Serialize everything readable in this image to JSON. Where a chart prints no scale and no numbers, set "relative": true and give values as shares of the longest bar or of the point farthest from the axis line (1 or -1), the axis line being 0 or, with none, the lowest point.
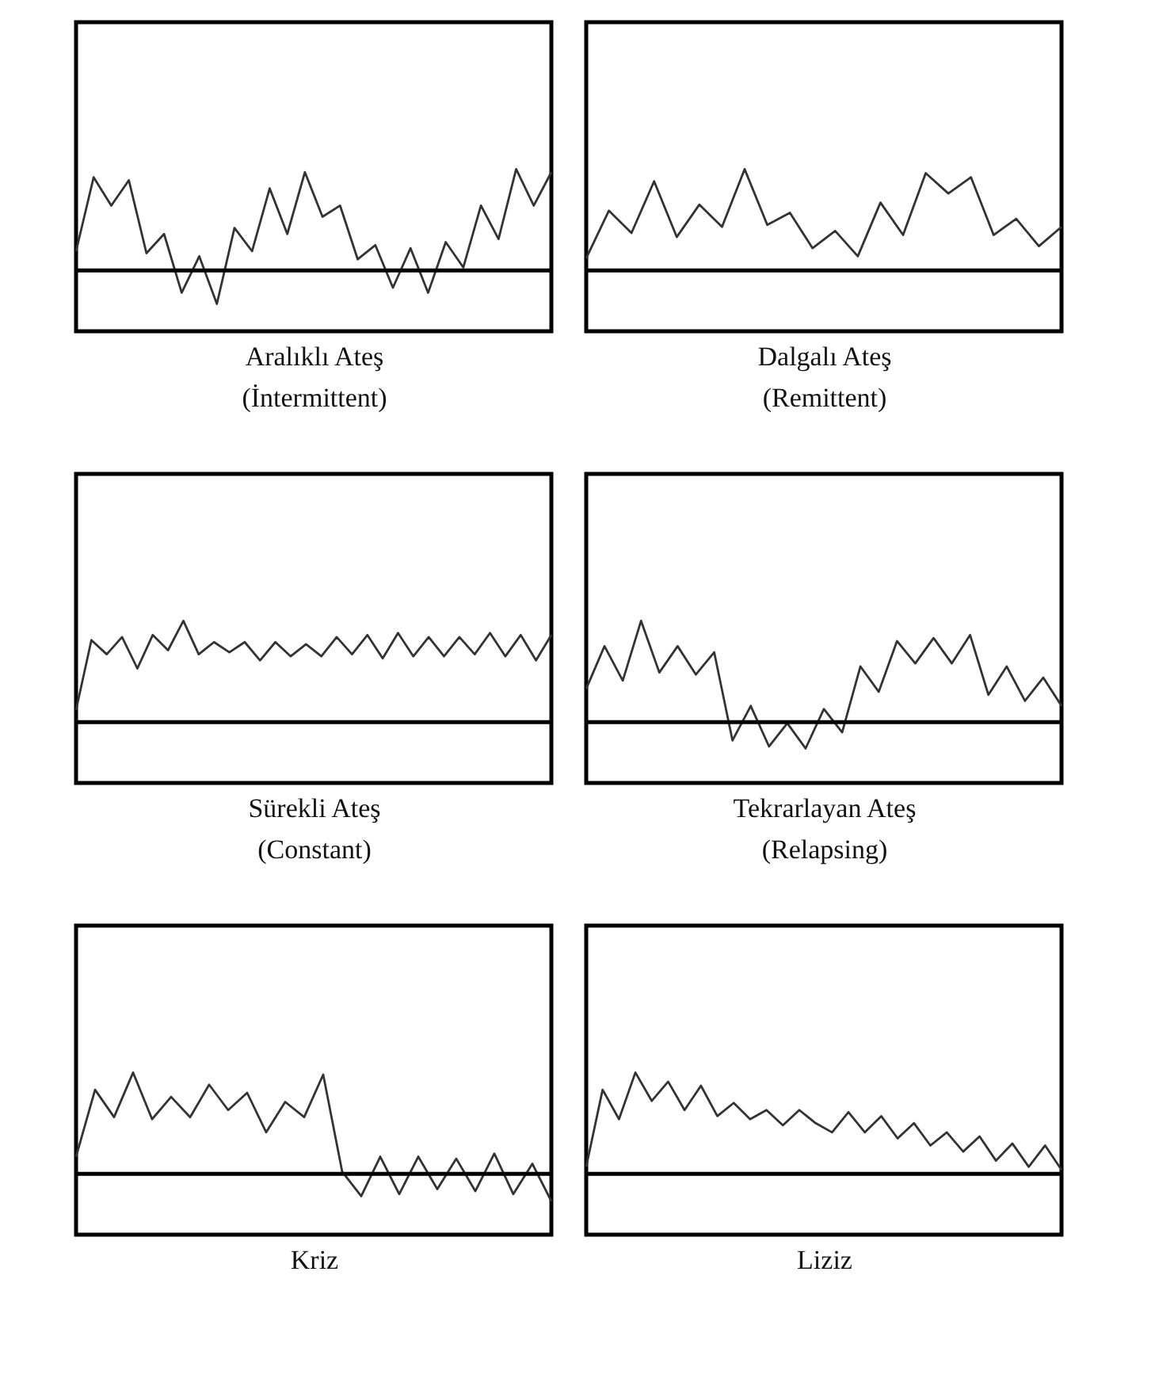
{
  "chart_data": [
    {
      "type": "line",
      "xlabel": "Aralıklı Ateş\n(İntermittent)",
      "relative": true,
      "categories": [
        null,
        null,
        null,
        null,
        null,
        null,
        null,
        null,
        null,
        null,
        null,
        null,
        null,
        null,
        null,
        null,
        null,
        null,
        null,
        null,
        null,
        null,
        null,
        null,
        null,
        null,
        null,
        null
      ],
      "series": [
        {
          "color": "#333333",
          "values": [
            0.19,
            0.92,
            0.64,
            0.89,
            0.17,
            0.36,
            -0.22,
            0.14,
            -0.33,
            0.42,
            0.19,
            0.81,
            0.36,
            0.97,
            0.53,
            0.64,
            0.11,
            0.25,
            -0.17,
            0.22,
            -0.22,
            0.28,
            0.03,
            0.64,
            0.31,
            1,
            0.64,
            0.97
          ]
        }
      ],
      "ref_lines": [
        {
          "axis": "y",
          "value": 0,
          "color": "#000000"
        }
      ]
    },
    {
      "type": "line",
      "xlabel": "Dalgalı Ateş\n(Remittent)",
      "relative": true,
      "categories": [
        null,
        null,
        null,
        null,
        null,
        null,
        null,
        null,
        null,
        null,
        null,
        null,
        null,
        null,
        null,
        null,
        null,
        null,
        null,
        null,
        null,
        null
      ],
      "series": [
        {
          "color": "#333333",
          "values": [
            0.12,
            0.59,
            0.37,
            0.88,
            0.33,
            0.65,
            0.43,
            1,
            0.45,
            0.57,
            0.22,
            0.39,
            0.14,
            0.67,
            0.35,
            0.96,
            0.76,
            0.92,
            0.35,
            0.51,
            0.24,
            0.43
          ]
        }
      ],
      "ref_lines": [
        {
          "axis": "y",
          "value": 0,
          "color": "#000000"
        }
      ]
    },
    {
      "type": "line",
      "xlabel": "Sürekli Ateş\n(Constant)",
      "relative": true,
      "categories": [
        null,
        null,
        null,
        null,
        null,
        null,
        null,
        null,
        null,
        null,
        null,
        null,
        null,
        null,
        null,
        null,
        null,
        null,
        null,
        null,
        null,
        null,
        null,
        null,
        null,
        null,
        null,
        null,
        null,
        null,
        null,
        null
      ],
      "series": [
        {
          "color": "#333333",
          "values": [
            0.12,
            0.81,
            0.67,
            0.84,
            0.53,
            0.86,
            0.71,
            1,
            0.67,
            0.79,
            0.69,
            0.79,
            0.61,
            0.79,
            0.65,
            0.77,
            0.65,
            0.84,
            0.67,
            0.86,
            0.63,
            0.88,
            0.65,
            0.84,
            0.65,
            0.84,
            0.67,
            0.88,
            0.65,
            0.86,
            0.61,
            0.86
          ]
        }
      ],
      "ref_lines": [
        {
          "axis": "y",
          "value": 0,
          "color": "#000000"
        }
      ]
    },
    {
      "type": "line",
      "xlabel": "Tekrarlayan Ateş\n(Relapsing)",
      "relative": true,
      "categories": [
        null,
        null,
        null,
        null,
        null,
        null,
        null,
        null,
        null,
        null,
        null,
        null,
        null,
        null,
        null,
        null,
        null,
        null,
        null,
        null,
        null,
        null,
        null,
        null,
        null,
        null,
        null
      ],
      "series": [
        {
          "color": "#333333",
          "values": [
            0.33,
            0.75,
            0.41,
            1,
            0.49,
            0.75,
            0.47,
            0.69,
            -0.18,
            0.16,
            -0.24,
            -0.01,
            -0.26,
            0.13,
            -0.1,
            0.55,
            0.3,
            0.8,
            0.58,
            0.83,
            0.58,
            0.86,
            0.27,
            0.55,
            0.21,
            0.44,
            0.16
          ]
        }
      ],
      "ref_lines": [
        {
          "axis": "y",
          "value": 0,
          "color": "#000000"
        }
      ]
    },
    {
      "type": "line",
      "xlabel": "Kriz",
      "relative": true,
      "categories": [
        null,
        null,
        null,
        null,
        null,
        null,
        null,
        null,
        null,
        null,
        null,
        null,
        null,
        null,
        null,
        null,
        null,
        null,
        null,
        null,
        null,
        null,
        null,
        null,
        null,
        null
      ],
      "series": [
        {
          "color": "#333333",
          "values": [
            0.17,
            0.83,
            0.56,
            1,
            0.54,
            0.76,
            0.56,
            0.88,
            0.63,
            0.8,
            0.41,
            0.71,
            0.56,
            0.98,
            0.02,
            -0.22,
            0.17,
            -0.2,
            0.17,
            -0.15,
            0.15,
            -0.17,
            0.2,
            -0.2,
            0.1,
            -0.27
          ]
        }
      ],
      "ref_lines": [
        {
          "axis": "y",
          "value": 0,
          "color": "#000000"
        }
      ]
    },
    {
      "type": "line",
      "xlabel": "Liziz",
      "relative": true,
      "categories": [
        null,
        null,
        null,
        null,
        null,
        null,
        null,
        null,
        null,
        null,
        null,
        null,
        null,
        null,
        null,
        null,
        null,
        null,
        null,
        null,
        null,
        null,
        null,
        null,
        null,
        null,
        null,
        null,
        null,
        null
      ],
      "series": [
        {
          "color": "#333333",
          "values": [
            0.07,
            0.83,
            0.54,
            1,
            0.72,
            0.91,
            0.63,
            0.87,
            0.57,
            0.7,
            0.54,
            0.63,
            0.48,
            0.63,
            0.5,
            0.41,
            0.61,
            0.41,
            0.57,
            0.35,
            0.5,
            0.28,
            0.41,
            0.22,
            0.37,
            0.13,
            0.3,
            0.07,
            0.28,
            0.04
          ]
        }
      ],
      "ref_lines": [
        {
          "axis": "y",
          "value": 0,
          "color": "#000000"
        }
      ]
    }
  ]
}
